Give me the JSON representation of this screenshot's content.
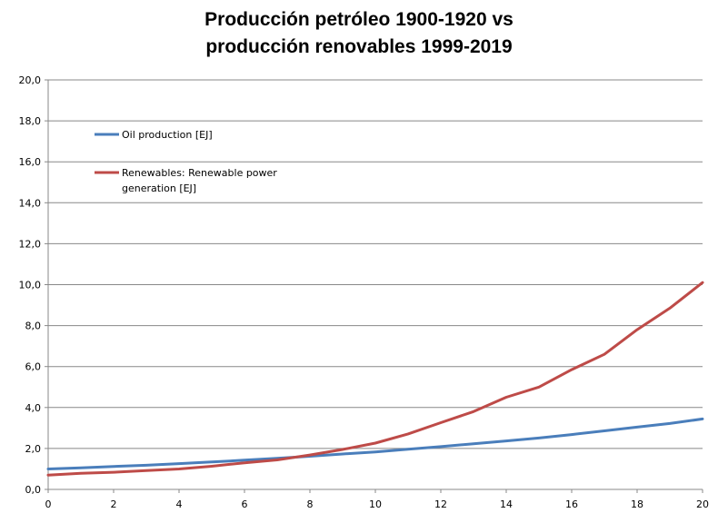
{
  "chart_data": {
    "type": "line",
    "title_lines": [
      "Producción petróleo  1900-1920 vs",
      "producción renovables 1999-2019"
    ],
    "xlabel": "",
    "ylabel": "",
    "xlim": [
      0,
      20
    ],
    "ylim": [
      0,
      20
    ],
    "x_ticks": [
      0,
      2,
      4,
      6,
      8,
      10,
      12,
      14,
      16,
      18,
      20
    ],
    "x_tick_labels": [
      "0",
      "2",
      "4",
      "6",
      "8",
      "10",
      "12",
      "14",
      "16",
      "18",
      "20"
    ],
    "y_ticks": [
      0,
      2,
      4,
      6,
      8,
      10,
      12,
      14,
      16,
      18,
      20
    ],
    "y_tick_labels": [
      "0,0",
      "2,0",
      "4,0",
      "6,0",
      "8,0",
      "10,0",
      "12,0",
      "14,0",
      "16,0",
      "18,0",
      "20,0"
    ],
    "grid": true,
    "legend_position": "top-left",
    "x": [
      0,
      1,
      2,
      3,
      4,
      5,
      6,
      7,
      8,
      9,
      10,
      11,
      12,
      13,
      14,
      15,
      16,
      17,
      18,
      19,
      20
    ],
    "series": [
      {
        "name": "Oil production [EJ]",
        "legend_lines": [
          "Oil production [EJ]"
        ],
        "color": "#4a7ebb",
        "values": [
          1.0,
          1.05,
          1.12,
          1.18,
          1.26,
          1.34,
          1.43,
          1.52,
          1.62,
          1.73,
          1.83,
          1.96,
          2.09,
          2.23,
          2.37,
          2.51,
          2.68,
          2.86,
          3.04,
          3.22,
          3.44
        ]
      },
      {
        "name": "Renewables: Renewable power generation [EJ]",
        "legend_lines": [
          "Renewables: Renewable power",
          "generation [EJ]"
        ],
        "color": "#be4b48",
        "values": [
          0.7,
          0.79,
          0.84,
          0.92,
          1.0,
          1.13,
          1.3,
          1.44,
          1.68,
          1.95,
          2.26,
          2.71,
          3.26,
          3.8,
          4.5,
          5.0,
          5.85,
          6.6,
          7.8,
          8.85,
          10.1
        ]
      }
    ]
  }
}
